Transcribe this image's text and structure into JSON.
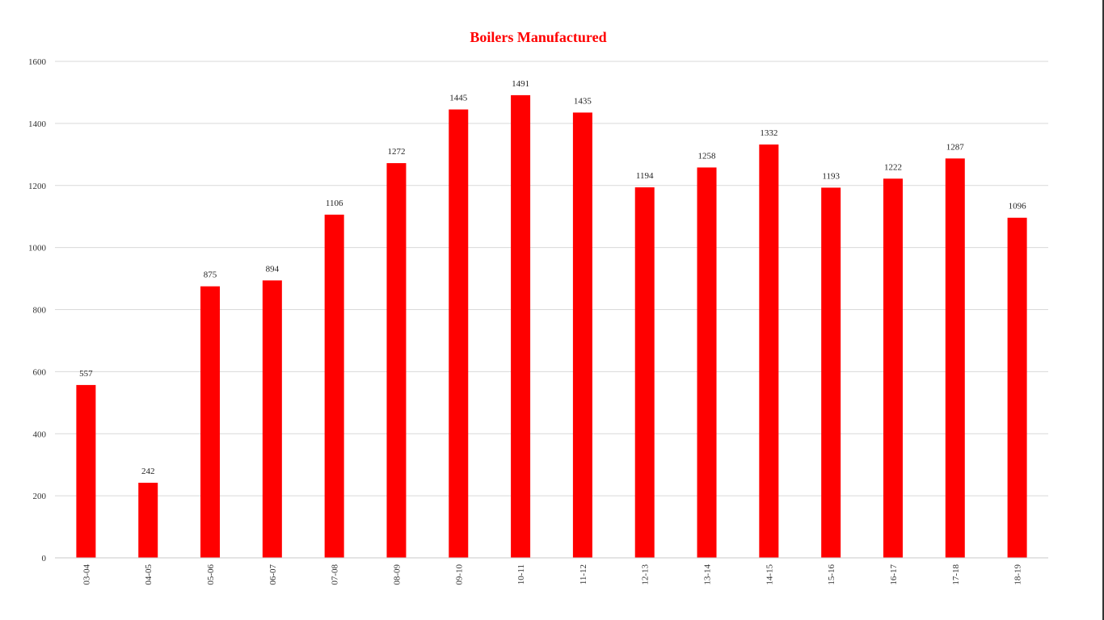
{
  "chart_data": {
    "type": "bar",
    "title": "Boilers Manufactured",
    "xlabel": "",
    "ylabel": "",
    "categories": [
      "03-04",
      "04-05",
      "05-06",
      "06-07",
      "07-08",
      "08-09",
      "09-10",
      "10-11",
      "11-12",
      "12-13",
      "13-14",
      "14-15",
      "15-16",
      "16-17",
      "17-18",
      "18-19"
    ],
    "values": [
      557,
      242,
      875,
      894,
      1106,
      1272,
      1445,
      1491,
      1435,
      1194,
      1258,
      1332,
      1193,
      1222,
      1287,
      1096
    ],
    "data_labels": [
      "557",
      "242",
      "875",
      "894",
      "1106",
      "1272",
      "1445",
      "1491",
      "1435",
      "1194",
      "1258",
      "1332",
      "1193",
      "1222",
      "1287",
      "1096"
    ],
    "ylim": [
      0,
      1600
    ],
    "y_ticks": [
      "0",
      "200",
      "400",
      "600",
      "800",
      "1000",
      "1200",
      "1400",
      "1600"
    ],
    "grid": true,
    "legend": "none",
    "colors": {
      "bar": "#ff0000",
      "title": "#ff0000",
      "gridline": "#d9d9d9",
      "axis_line": "#c8c8c8"
    }
  }
}
